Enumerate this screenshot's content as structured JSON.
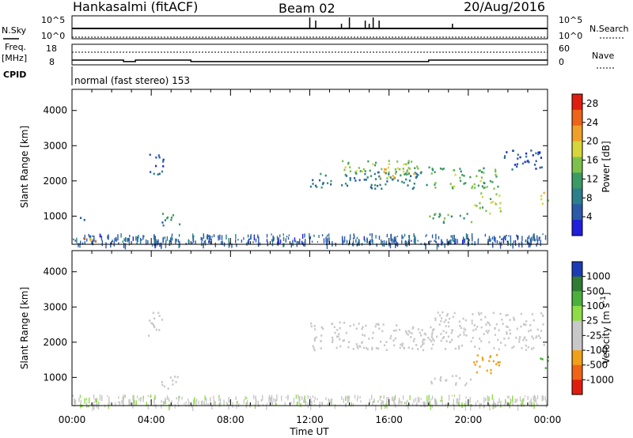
{
  "header": {
    "site": "Hankasalmi (fitACF)",
    "beam": "Beam 02",
    "date": "20/Aug/2016"
  },
  "status_panel": {
    "nsky_label": "N.Sky",
    "nsearch_label": "N.Search",
    "freq_label": "Freq.",
    "freq_unit": "[MHz]",
    "nave_label": "Nave",
    "cpid_label": "CPID",
    "cpid_text": "normal (fast stereo) 153",
    "noise_ticks_left": [
      "10^5",
      "10^0"
    ],
    "noise_ticks_right": [
      "10^5",
      "10^0"
    ],
    "freq_ticks": [
      "18",
      "8"
    ],
    "nave_ticks": [
      "60",
      "0"
    ],
    "freq_segments": [
      {
        "start_h": 0,
        "end_h": 2.6,
        "mhz": 10.3
      },
      {
        "start_h": 2.6,
        "end_h": 3.2,
        "mhz": 9.6
      },
      {
        "start_h": 3.2,
        "end_h": 6.0,
        "mhz": 10.3
      },
      {
        "start_h": 6.0,
        "end_h": 18.0,
        "mhz": 9.6
      },
      {
        "start_h": 18.0,
        "end_h": 24.0,
        "mhz": 10.3
      }
    ],
    "noise_spikes_h": [
      12.0,
      12.3,
      13.6,
      14.0,
      14.8,
      15.0,
      15.2,
      15.5,
      19.2
    ]
  },
  "colors": {
    "power_scale": [
      "#1f1fdc",
      "#2a5aa8",
      "#2c7f8c",
      "#3c9a64",
      "#7cc24a",
      "#d6d63a",
      "#f0a028",
      "#ee6418",
      "#e01e10"
    ],
    "velocity_scale": [
      "#1a3db4",
      "#2e7d32",
      "#4caf3c",
      "#8edc46",
      "#c8c8c8",
      "#c8c8c8",
      "#f0a018",
      "#f06418",
      "#e01e10"
    ],
    "axis": "#000000"
  },
  "chart_data": [
    {
      "type": "heatmap",
      "title": "",
      "xlabel": "Time UT",
      "ylabel": "Slant Range [km]",
      "xlim": [
        0,
        24
      ],
      "ylim": [
        200,
        4600
      ],
      "x_ticks": [
        "00:00",
        "04:00",
        "08:00",
        "12:00",
        "16:00",
        "20:00",
        "00:00"
      ],
      "y_ticks": [
        1000,
        2000,
        3000,
        4000
      ],
      "colorbar_label": "Power [dB]",
      "colorbar_ticks": [
        4,
        8,
        12,
        16,
        20,
        24,
        28
      ],
      "colorbar_range": [
        0,
        30
      ],
      "echo_regions": [
        {
          "t0": 0.3,
          "t1": 1.2,
          "r0": 200,
          "r1": 400,
          "value": 22
        },
        {
          "t0": 0.2,
          "t1": 0.6,
          "r0": 900,
          "r1": 1100,
          "value": 6
        },
        {
          "t0": 3.8,
          "t1": 4.6,
          "r0": 2200,
          "r1": 2900,
          "value": 6
        },
        {
          "t0": 4.5,
          "t1": 5.5,
          "r0": 700,
          "r1": 1100,
          "value": 10
        },
        {
          "t0": 12.0,
          "t1": 18.0,
          "r0": 1800,
          "r1": 2300,
          "value": 8
        },
        {
          "t0": 13.5,
          "t1": 18.0,
          "r0": 2200,
          "r1": 2600,
          "value": 14
        },
        {
          "t0": 15.5,
          "t1": 17.5,
          "r0": 2100,
          "r1": 2400,
          "value": 20
        },
        {
          "t0": 18.0,
          "t1": 21.5,
          "r0": 1800,
          "r1": 2400,
          "value": 13
        },
        {
          "t0": 18.0,
          "t1": 20.2,
          "r0": 800,
          "r1": 1100,
          "value": 11
        },
        {
          "t0": 20.2,
          "t1": 21.6,
          "r0": 1100,
          "r1": 1700,
          "value": 16
        },
        {
          "t0": 21.6,
          "t1": 23.8,
          "r0": 2300,
          "r1": 2900,
          "value": 6
        },
        {
          "t0": 23.6,
          "t1": 24.0,
          "r0": 1200,
          "r1": 1700,
          "value": 18
        }
      ]
    },
    {
      "type": "heatmap",
      "title": "",
      "xlabel": "Time UT",
      "ylabel": "Slant Range [km]",
      "xlim": [
        0,
        24
      ],
      "ylim": [
        200,
        4600
      ],
      "x_ticks": [
        "00:00",
        "04:00",
        "08:00",
        "12:00",
        "16:00",
        "20:00",
        "00:00"
      ],
      "y_ticks": [
        1000,
        2000,
        3000,
        4000
      ],
      "colorbar_label": "Velocity [m s^-1]",
      "colorbar_ticks": [
        1000,
        500,
        100,
        25,
        -25,
        -100,
        -500,
        -1000
      ],
      "echo_regions": [
        {
          "t0": 0.3,
          "t1": 1.2,
          "r0": 200,
          "r1": 400,
          "value": 50
        },
        {
          "t0": 3.8,
          "t1": 4.6,
          "r0": 2200,
          "r1": 2900,
          "value": 0
        },
        {
          "t0": 4.5,
          "t1": 5.5,
          "r0": 700,
          "r1": 1100,
          "value": 0
        },
        {
          "t0": 12.0,
          "t1": 18.0,
          "r0": 1800,
          "r1": 2600,
          "value": 0
        },
        {
          "t0": 18.0,
          "t1": 23.8,
          "r0": 1800,
          "r1": 2900,
          "value": 0
        },
        {
          "t0": 18.0,
          "t1": 20.2,
          "r0": 800,
          "r1": 1100,
          "value": -60
        },
        {
          "t0": 20.2,
          "t1": 21.6,
          "r0": 1100,
          "r1": 1700,
          "value": -300
        },
        {
          "t0": 23.6,
          "t1": 24.0,
          "r0": 1200,
          "r1": 1700,
          "value": 400
        }
      ]
    }
  ]
}
